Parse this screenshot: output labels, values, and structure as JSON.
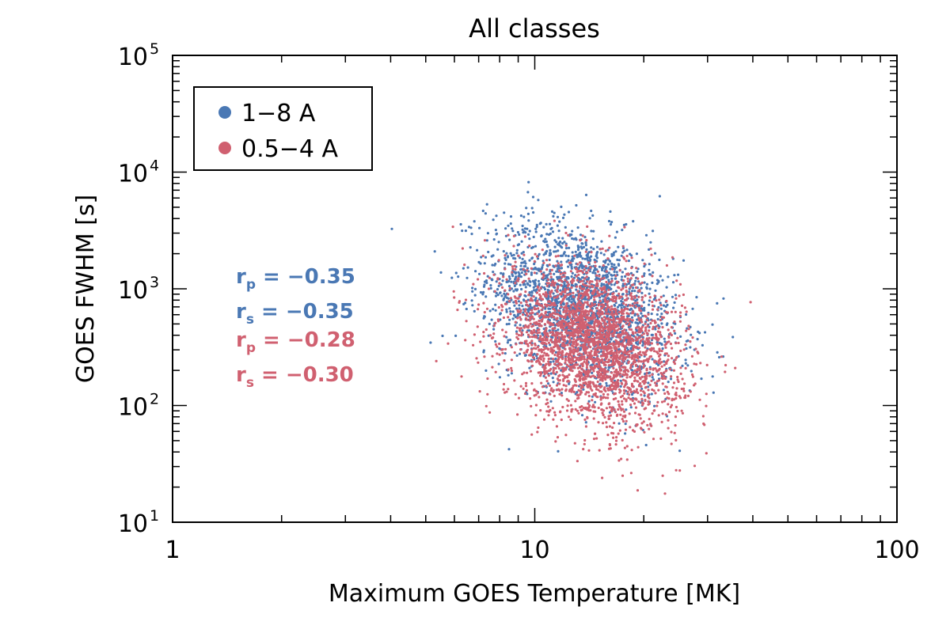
{
  "chart_data": {
    "type": "scatter",
    "title": "All classes",
    "xlabel": "Maximum GOES Temperature [MK]",
    "ylabel": "GOES FWHM [s]",
    "x_scale": "log",
    "y_scale": "log",
    "xlim": [
      1,
      100
    ],
    "ylim": [
      10,
      100000
    ],
    "x_ticks": [
      {
        "base": "1"
      },
      {
        "base": "10"
      },
      {
        "base": "100"
      }
    ],
    "y_ticks": [
      {
        "value": 10,
        "base": "10",
        "exp": "1"
      },
      {
        "value": 100,
        "base": "10",
        "exp": "2"
      },
      {
        "value": 1000,
        "base": "10",
        "exp": "3"
      },
      {
        "value": 10000,
        "base": "10",
        "exp": "4"
      },
      {
        "value": 100000,
        "base": "10",
        "exp": "5"
      }
    ],
    "legend_placement": "top-left",
    "series": [
      {
        "name": "1−8 A",
        "color": "#4a78b4",
        "n_points": 2200,
        "center_x": 13.5,
        "center_y": 700,
        "spread_log_x": 0.13,
        "spread_log_y": 0.36,
        "corr": -0.35
      },
      {
        "name": "0.5−4 A",
        "color": "#d06070",
        "n_points": 2800,
        "center_x": 14.5,
        "center_y": 330,
        "spread_log_x": 0.12,
        "spread_log_y": 0.34,
        "corr": -0.28
      }
    ],
    "annotations": [
      {
        "label": "r",
        "sub": "p",
        "text": " = −0.35",
        "color": "#4a78b4"
      },
      {
        "label": "r",
        "sub": "s",
        "text": " = −0.35",
        "color": "#4a78b4"
      },
      {
        "label": "r",
        "sub": "p",
        "text": " = −0.28",
        "color": "#d06070"
      },
      {
        "label": "r",
        "sub": "s",
        "text": " = −0.30",
        "color": "#d06070"
      }
    ]
  }
}
